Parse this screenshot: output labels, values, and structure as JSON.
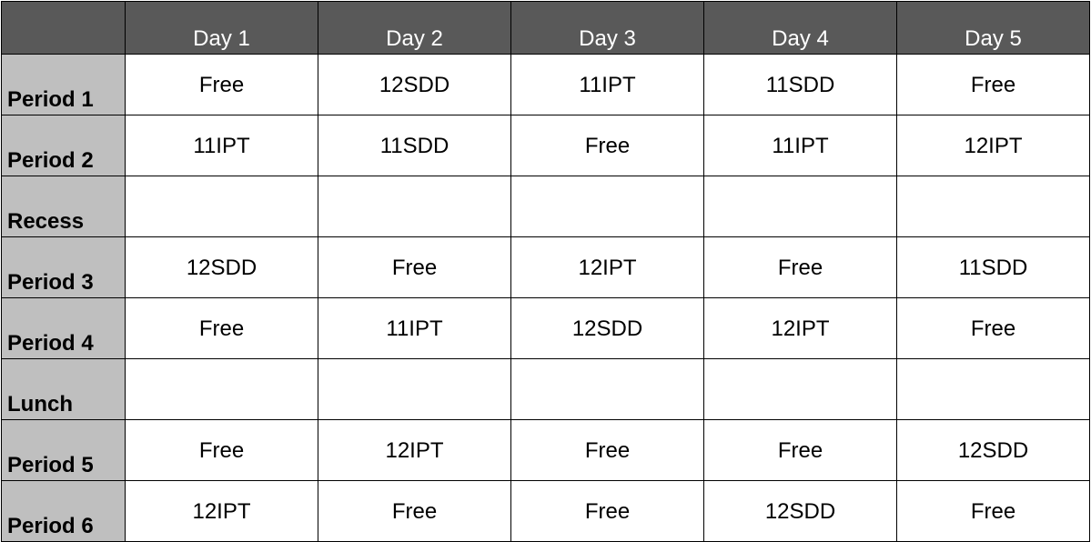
{
  "header": {
    "corner": "",
    "days": [
      "Day 1",
      "Day 2",
      "Day 3",
      "Day 4",
      "Day 5"
    ]
  },
  "rows": [
    {
      "label": "Period 1",
      "cells": [
        "Free",
        "12SDD",
        "11IPT",
        "11SDD",
        "Free"
      ]
    },
    {
      "label": "Period 2",
      "cells": [
        "11IPT",
        "11SDD",
        "Free",
        "11IPT",
        "12IPT"
      ]
    },
    {
      "label": "Recess",
      "cells": [
        "",
        "",
        "",
        "",
        ""
      ]
    },
    {
      "label": "Period 3",
      "cells": [
        "12SDD",
        "Free",
        "12IPT",
        "Free",
        "11SDD"
      ]
    },
    {
      "label": "Period 4",
      "cells": [
        "Free",
        "11IPT",
        "12SDD",
        "12IPT",
        "Free"
      ]
    },
    {
      "label": "Lunch",
      "cells": [
        "",
        "",
        "",
        "",
        ""
      ]
    },
    {
      "label": "Period 5",
      "cells": [
        "Free",
        "12IPT",
        "Free",
        "Free",
        "12SDD"
      ]
    },
    {
      "label": "Period 6",
      "cells": [
        "12IPT",
        "Free",
        "Free",
        "12SDD",
        "Free"
      ]
    }
  ],
  "colors": {
    "header_bg": "#595959",
    "header_text": "#ffffff",
    "label_bg": "#bfbfbf",
    "cell_bg": "#ffffff",
    "border": "#000000"
  }
}
